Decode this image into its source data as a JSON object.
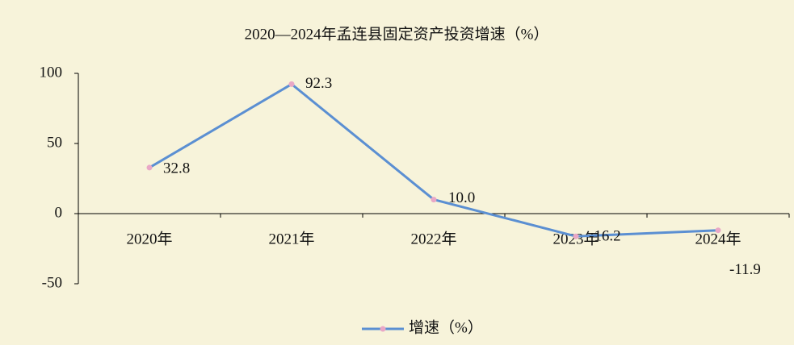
{
  "chart_data": {
    "type": "line",
    "title": "2020—2024年孟连县固定资产投资增速（%）",
    "categories": [
      "2020年",
      "2021年",
      "2022年",
      "2023年",
      "2024年"
    ],
    "series": [
      {
        "name": "增速（%）",
        "color": "#5b8fd2",
        "marker_color": "#e9a7c6",
        "values": [
          32.8,
          92.3,
          10.0,
          -16.2,
          -11.9
        ],
        "value_labels": [
          "32.8",
          "92.3",
          "10.0",
          "-16.2",
          "-11.9"
        ]
      }
    ],
    "ylim": [
      -50,
      100
    ],
    "yticks": [
      -50,
      0,
      50,
      100
    ],
    "grid": false,
    "legend": "bottom"
  }
}
